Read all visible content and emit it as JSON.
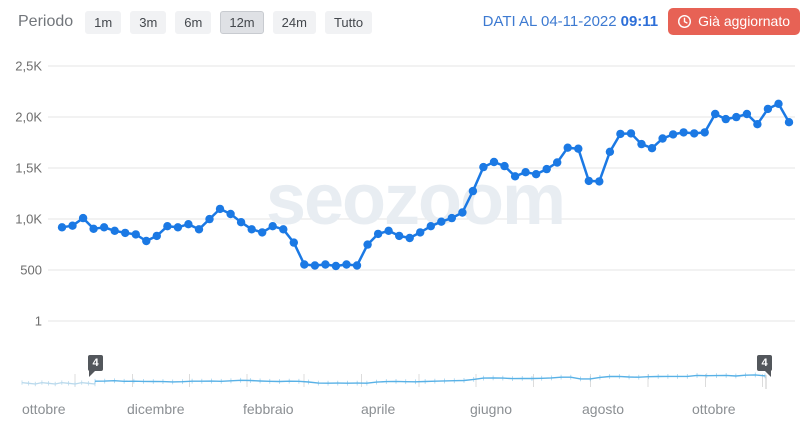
{
  "toolbar": {
    "period_label": "Periodo",
    "period_options": [
      "1m",
      "3m",
      "6m",
      "12m",
      "24m",
      "Tutto"
    ],
    "selected_period": "12m",
    "data_updated_label": "DATI AL 04-11-2022",
    "data_updated_time": "09:11",
    "refresh_button_label": "Già aggiornato",
    "refresh_button_icon": "clock-icon",
    "refresh_button_color": "#e76255"
  },
  "watermark_text": "seozoom",
  "chart_data": {
    "type": "line",
    "title": "",
    "xlabel": "",
    "ylabel": "",
    "grid": "horizontal",
    "legend": "none",
    "marker": "circle",
    "series": [
      {
        "name": "trend",
        "color": "#1b79e4",
        "values": [
          920,
          935,
          1010,
          905,
          920,
          885,
          865,
          850,
          785,
          835,
          930,
          920,
          950,
          900,
          1000,
          1100,
          1050,
          970,
          900,
          870,
          930,
          900,
          770,
          555,
          545,
          555,
          540,
          555,
          545,
          750,
          855,
          885,
          835,
          815,
          870,
          930,
          975,
          1010,
          1065,
          1275,
          1510,
          1560,
          1520,
          1420,
          1460,
          1440,
          1490,
          1555,
          1700,
          1690,
          1375,
          1370,
          1660,
          1835,
          1840,
          1735,
          1695,
          1790,
          1830,
          1850,
          1840,
          1850,
          2030,
          1980,
          2000,
          2030,
          1930,
          2080,
          2130,
          1950
        ]
      }
    ],
    "y_axis": {
      "tick_labels": [
        "2,5K",
        "2,0K",
        "1,5K",
        "1,0K",
        "500",
        "1"
      ],
      "tick_values": [
        2500,
        2000,
        1500,
        1000,
        500,
        1
      ],
      "range": [
        1,
        2500
      ]
    },
    "x_axis": {
      "tick_labels": [
        "ottobre",
        "dicembre",
        "febbraio",
        "aprile",
        "giugno",
        "agosto",
        "ottobre"
      ]
    }
  },
  "navigator": {
    "left_handle_label": "4",
    "right_handle_label": "4",
    "line_color": "#58b1e6",
    "outside_line_color": "#b9d9ec"
  },
  "colors": {
    "gridline": "#e5e5e5",
    "axis_text": "#6e6e6e",
    "watermark": "#e8edf2",
    "period_button_bg": "#f1f2f4",
    "period_button_selected_bg": "#dfe1e5"
  }
}
